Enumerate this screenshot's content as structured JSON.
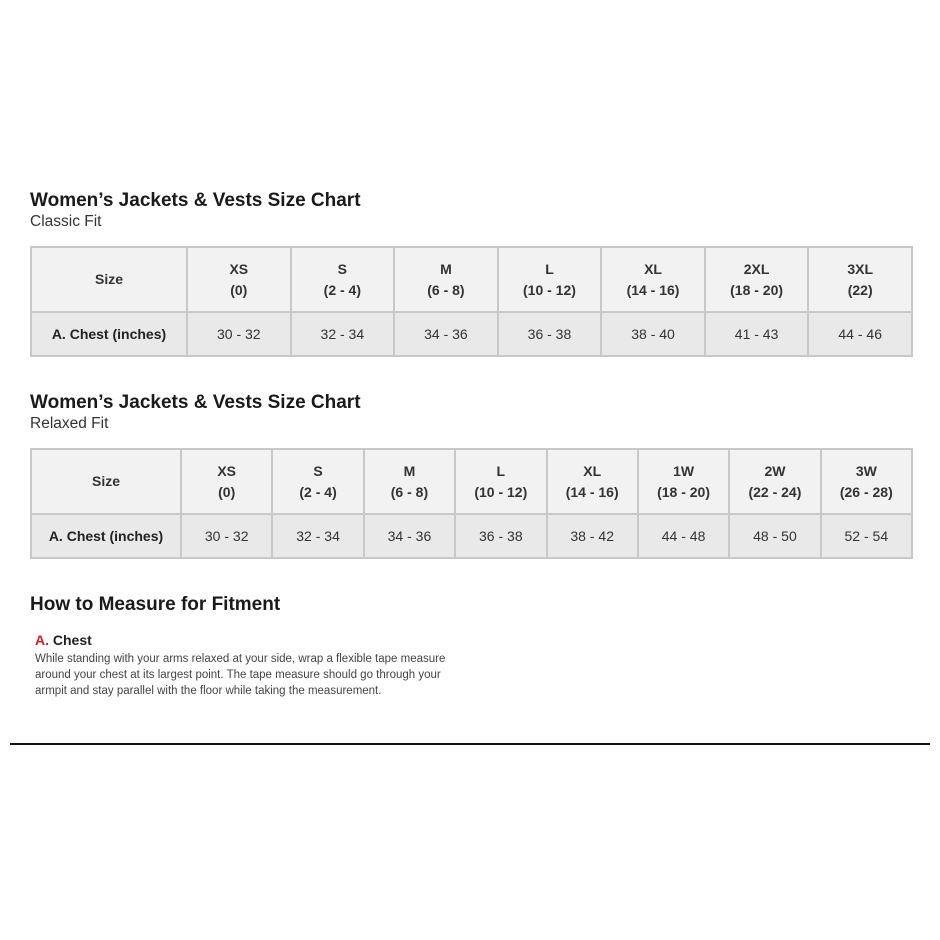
{
  "classic": {
    "title": "Women’s Jackets & Vests Size Chart",
    "subtitle": "Classic Fit",
    "header": "Size",
    "row_label": "A. Chest (inches)",
    "sizes": [
      {
        "name": "XS",
        "range": "(0)"
      },
      {
        "name": "S",
        "range": "(2 - 4)"
      },
      {
        "name": "M",
        "range": "(6 - 8)"
      },
      {
        "name": "L",
        "range": "(10 - 12)"
      },
      {
        "name": "XL",
        "range": "(14 - 16)"
      },
      {
        "name": "2XL",
        "range": "(18 - 20)"
      },
      {
        "name": "3XL",
        "range": "(22)"
      }
    ],
    "chest": [
      "30 - 32",
      "32 - 34",
      "34 - 36",
      "36 - 38",
      "38 - 40",
      "41 - 43",
      "44 - 46"
    ]
  },
  "relaxed": {
    "title": "Women’s Jackets & Vests Size Chart",
    "subtitle": "Relaxed Fit",
    "header": "Size",
    "row_label": "A. Chest (inches)",
    "sizes": [
      {
        "name": "XS",
        "range": "(0)"
      },
      {
        "name": "S",
        "range": "(2 - 4)"
      },
      {
        "name": "M",
        "range": "(6 - 8)"
      },
      {
        "name": "L",
        "range": "(10 - 12)"
      },
      {
        "name": "XL",
        "range": "(14 - 16)"
      },
      {
        "name": "1W",
        "range": "(18 - 20)"
      },
      {
        "name": "2W",
        "range": "(22 - 24)"
      },
      {
        "name": "3W",
        "range": "(26 - 28)"
      }
    ],
    "chest": [
      "30 - 32",
      "32 - 34",
      "34 - 36",
      "36 - 38",
      "38 - 42",
      "44 - 48",
      "48 - 50",
      "52 - 54"
    ]
  },
  "measure": {
    "title": "How to Measure for Fitment",
    "letter": "A.",
    "name": "Chest",
    "accent": "#d0202a",
    "text": "While standing with your arms relaxed at your side, wrap a flexible tape measure around your chest at its largest point. The tape measure should go through your armpit and stay parallel with the floor while taking the measurement."
  }
}
